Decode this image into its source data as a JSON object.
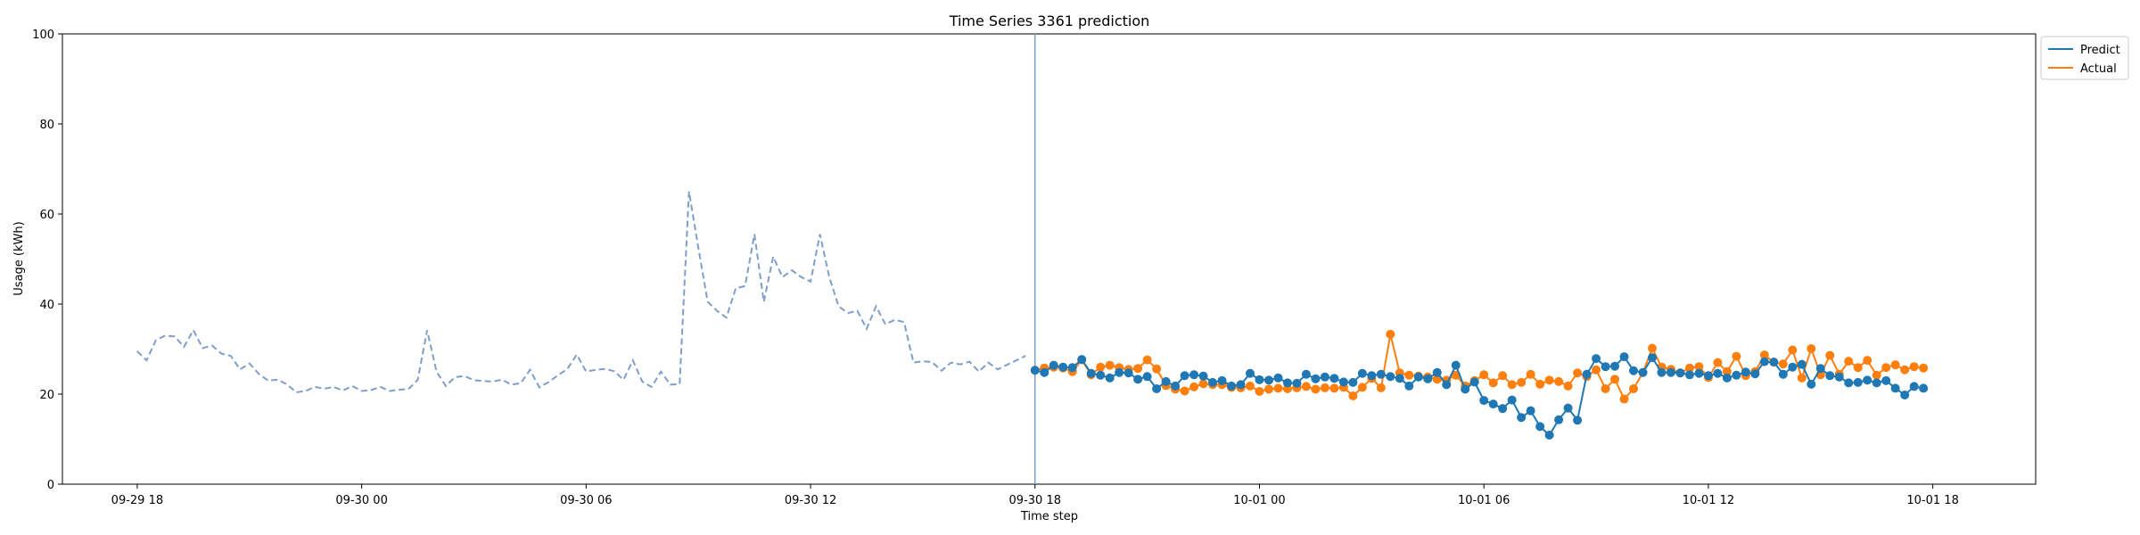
{
  "chart_data": {
    "type": "line",
    "title": "Time Series 3361 prediction",
    "xlabel": "Time step",
    "ylabel": "Usage (kWh)",
    "ylim": [
      0,
      100
    ],
    "yticks": [
      0,
      20,
      40,
      60,
      80,
      100
    ],
    "xlim": [
      "09-29 16:00",
      "10-01 20:45"
    ],
    "xticks": [
      {
        "label": "09-29 18",
        "t": "09-29 18:00"
      },
      {
        "label": "09-30 00",
        "t": "09-30 00:00"
      },
      {
        "label": "09-30 06",
        "t": "09-30 06:00"
      },
      {
        "label": "09-30 12",
        "t": "09-30 12:00"
      },
      {
        "label": "09-30 18",
        "t": "09-30 18:00"
      },
      {
        "label": "10-01 00",
        "t": "10-01 00:00"
      },
      {
        "label": "10-01 06",
        "t": "10-01 06:00"
      },
      {
        "label": "10-01 12",
        "t": "10-01 12:00"
      },
      {
        "label": "10-01 18",
        "t": "10-01 18:00"
      }
    ],
    "grid": false,
    "legend_position": "outside top-right",
    "forecast_start": "09-30 18:00",
    "colors": {
      "predict": "#1f77b4",
      "actual": "#ff7f0e",
      "history": "#7f9fc8",
      "divider": "#7f9fc8"
    },
    "history": {
      "start": "09-29 18:00",
      "step_minutes": 15,
      "values": [
        29.5,
        27.5,
        32,
        33,
        32.8,
        30.5,
        34.2,
        30.2,
        30.8,
        29,
        28.5,
        25.5,
        26.8,
        24.5,
        23,
        23.2,
        22.2,
        20.4,
        20.7,
        21.6,
        21.2,
        21.6,
        20.8,
        21.8,
        20.7,
        20.9,
        21.6,
        20.7,
        21,
        21.1,
        23.2,
        34.2,
        25,
        21.8,
        23.8,
        24,
        23.1,
        22.9,
        22.8,
        23.2,
        22.1,
        22.4,
        25.4,
        21.5,
        22.7,
        24.2,
        25.6,
        28.8,
        25,
        25.4,
        25.6,
        25.1,
        23.2,
        27.5,
        22.8,
        21.6,
        25,
        22.1,
        22.2,
        65,
        52.5,
        40.5,
        38.5,
        37,
        43.5,
        44,
        55.5,
        40.5,
        50.5,
        46,
        47.5,
        46,
        45,
        55.5,
        46,
        39.5,
        38,
        38.5,
        34.5,
        39.5,
        35.5,
        36.5,
        36,
        27,
        27.3,
        27.1,
        25.2,
        27,
        26.6,
        27.2,
        25,
        27,
        25.5,
        26.5,
        27.5,
        28.5
      ]
    },
    "series": [
      {
        "name": "Predict",
        "start": "09-30 18:00",
        "step_minutes": 15,
        "values": [
          25.3,
          24.8,
          26.4,
          26,
          25.9,
          27.7,
          24.6,
          24.2,
          23.6,
          24.8,
          24.7,
          23.3,
          23.9,
          21.2,
          22.8,
          21.8,
          24.1,
          24.3,
          24,
          22.6,
          23,
          21.8,
          22.1,
          24.6,
          23.2,
          23.1,
          23.6,
          22.5,
          22.4,
          24.4,
          23.4,
          23.8,
          23.5,
          22.7,
          22.6,
          24.6,
          24.1,
          24.4,
          23.9,
          23.5,
          21.8,
          23.8,
          23.4,
          24.8,
          22.1,
          26.4,
          21.1,
          22.7,
          18.6,
          17.8,
          16.8,
          18.7,
          14.8,
          16.3,
          12.8,
          10.9,
          14.3,
          16.9,
          14.2,
          24.4,
          27.9,
          26.1,
          26.2,
          28.3,
          25.2,
          24.8,
          28.1,
          24.8,
          24.8,
          24.7,
          24.3,
          24.6,
          24.1,
          24.6,
          23.6,
          24.2,
          24.9,
          24.5,
          27.2,
          27.1,
          24.4,
          26,
          26.6,
          22.2,
          25.7,
          24.1,
          23.8,
          22.5,
          22.6,
          23.1,
          22.5,
          23,
          21.3,
          19.8,
          21.7,
          21.3
        ]
      },
      {
        "name": "Actual",
        "start": "09-30 18:00",
        "step_minutes": 15,
        "values": [
          25.3,
          25.8,
          26,
          25.8,
          25,
          27.6,
          24.3,
          26,
          26.4,
          25.9,
          25.5,
          25.7,
          27.6,
          25.6,
          21.9,
          21.1,
          20.7,
          21.6,
          22.3,
          22.1,
          22.1,
          21.5,
          21.4,
          21.8,
          20.6,
          21.1,
          21.3,
          21.2,
          21.4,
          21.7,
          21.1,
          21.4,
          21.3,
          21.5,
          19.6,
          21.5,
          23.5,
          21.4,
          33.3,
          24.7,
          24.2,
          24,
          23.8,
          23.3,
          23.1,
          24.2,
          21.8,
          23,
          24.3,
          22.5,
          24.1,
          22.1,
          22.6,
          24.4,
          22.2,
          23.1,
          22.8,
          21.8,
          24.7,
          23.9,
          25.4,
          21.2,
          23.3,
          18.9,
          21.2,
          24.8,
          30.2,
          26,
          25.5,
          24.7,
          25.8,
          26.1,
          23.7,
          27,
          25,
          28.4,
          24.1,
          25,
          28.7,
          27.1,
          26.7,
          29.8,
          23.6,
          30.1,
          24.3,
          28.6,
          24.4,
          27.3,
          25.9,
          27.5,
          24.2,
          25.9,
          26.5,
          25.4,
          26.1,
          25.8
        ]
      }
    ]
  }
}
